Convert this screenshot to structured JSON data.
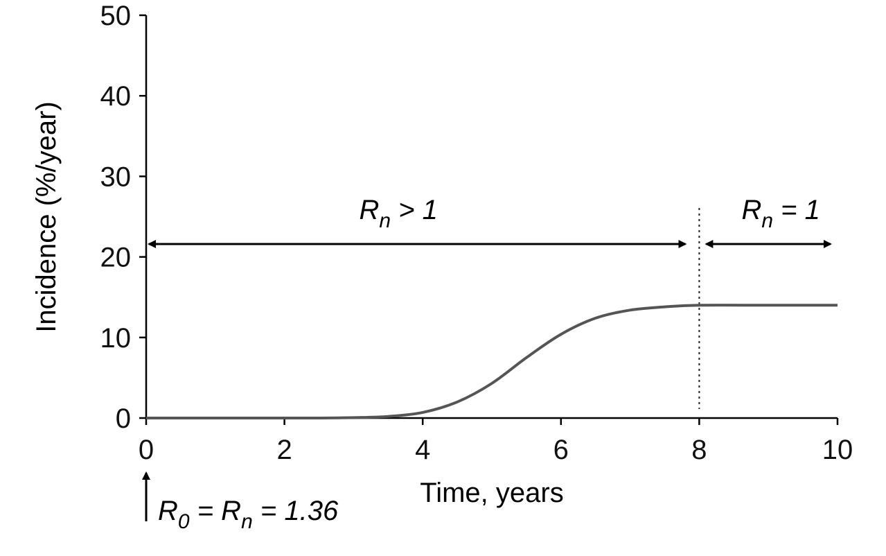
{
  "chart_data": {
    "type": "line",
    "xlabel": "Time, years",
    "ylabel": "Incidence (%/year)",
    "xlim": [
      0,
      10
    ],
    "ylim": [
      0,
      50
    ],
    "x_ticks": [
      0,
      2,
      4,
      6,
      8,
      10
    ],
    "y_ticks": [
      0,
      10,
      20,
      30,
      40,
      50
    ],
    "grid": false,
    "colors": {
      "line": "#555555",
      "axis": "#000000"
    },
    "series": [
      {
        "x": [
          0,
          1,
          2,
          2.5,
          3,
          3.5,
          4,
          4.5,
          5,
          5.5,
          6,
          6.5,
          7,
          7.5,
          8,
          9,
          10
        ],
        "values": [
          0,
          0,
          0,
          0,
          0.05,
          0.2,
          0.7,
          2.0,
          4.3,
          7.5,
          10.4,
          12.4,
          13.4,
          13.8,
          14,
          14,
          14
        ]
      }
    ],
    "reference_line": {
      "x": 8,
      "style": "dotted"
    },
    "annotations": {
      "phase1": {
        "base": "R",
        "sub": "n",
        "rest": " > 1",
        "x_from": 0,
        "x_to": 7.8
      },
      "phase2": {
        "base": "R",
        "sub": "n",
        "rest": " = 1",
        "x_from": 8.1,
        "x_to": 9.9
      },
      "start": {
        "r": "R",
        "sub0": "0",
        "eq1": " = ",
        "r2": "R",
        "subn": "n",
        "eq2": " = 1.36",
        "x": 0
      }
    }
  }
}
